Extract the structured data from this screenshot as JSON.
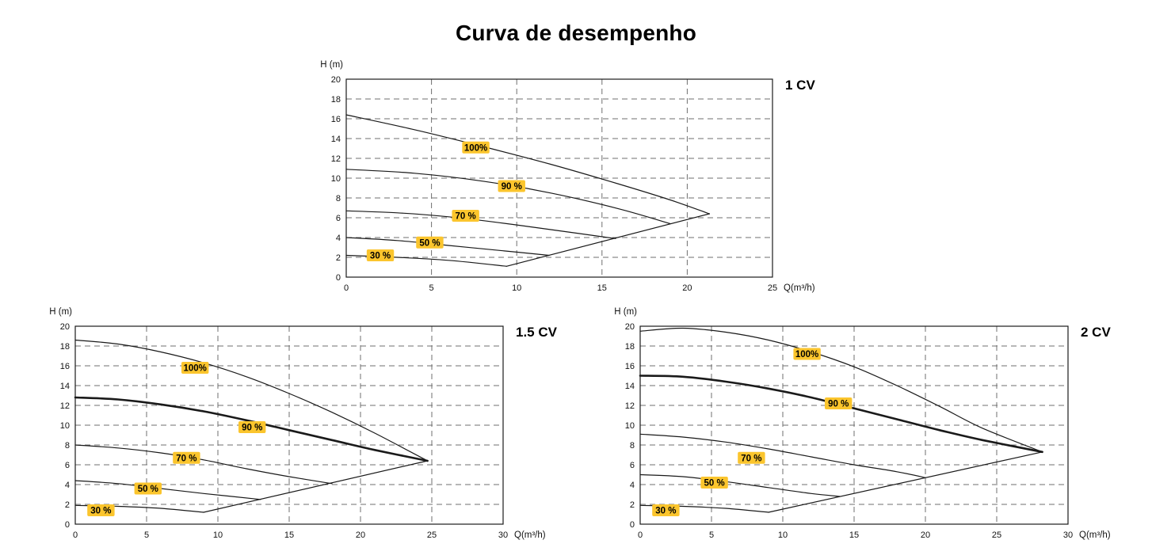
{
  "page": {
    "title": "Curva de desempenho"
  },
  "colors": {
    "curve": "#1a1a1a",
    "grid": "#6f6f6f",
    "frame": "#1a1a1a",
    "tick_text": "#111111",
    "label_bg": "#fbc52d",
    "label_text": "#000000"
  },
  "chart_data": [
    {
      "type": "line",
      "title": "1 CV",
      "xlabel": "Q(m³/h)",
      "ylabel": "H (m)",
      "xlim": [
        0,
        25
      ],
      "ylim": [
        0,
        20
      ],
      "xticks": [
        0,
        5,
        10,
        15,
        20,
        25
      ],
      "yticks": [
        0,
        2,
        4,
        6,
        8,
        10,
        12,
        14,
        16,
        18,
        20
      ],
      "grid": true,
      "legend_position": "none",
      "series": [
        {
          "name": "100%",
          "bold": false,
          "points": [
            [
              0,
              16.4
            ],
            [
              4,
              14.9
            ],
            [
              8,
              13.2
            ],
            [
              12,
              11.4
            ],
            [
              16,
              9.4
            ],
            [
              19,
              7.8
            ],
            [
              21.3,
              6.4
            ]
          ]
        },
        {
          "name": "90%",
          "bold": false,
          "points": [
            [
              0,
              10.9
            ],
            [
              4,
              10.5
            ],
            [
              8,
              9.7
            ],
            [
              12,
              8.5
            ],
            [
              16,
              6.9
            ],
            [
              19,
              5.4
            ]
          ]
        },
        {
          "name": "70%",
          "bold": false,
          "points": [
            [
              0,
              6.7
            ],
            [
              3,
              6.5
            ],
            [
              6,
              6.1
            ],
            [
              9,
              5.5
            ],
            [
              12,
              4.8
            ],
            [
              15.8,
              3.9
            ]
          ]
        },
        {
          "name": "50%",
          "bold": false,
          "points": [
            [
              0,
              4.0
            ],
            [
              3,
              3.7
            ],
            [
              6,
              3.2
            ],
            [
              9,
              2.7
            ],
            [
              11.9,
              2.2
            ]
          ]
        },
        {
          "name": "30%",
          "bold": false,
          "points": [
            [
              0,
              2.2
            ],
            [
              3,
              2.0
            ],
            [
              6,
              1.7
            ],
            [
              9.4,
              1.1
            ]
          ]
        },
        {
          "name": "limit-envelope",
          "bold": false,
          "points": [
            [
              9.4,
              1.1
            ],
            [
              21.3,
              6.4
            ]
          ]
        }
      ],
      "labels": [
        {
          "text": "100%",
          "x": 7.6,
          "y": 13.1
        },
        {
          "text": "90 %",
          "x": 9.7,
          "y": 9.2
        },
        {
          "text": "70 %",
          "x": 7.0,
          "y": 6.2
        },
        {
          "text": "50 %",
          "x": 4.9,
          "y": 3.5
        },
        {
          "text": "30 %",
          "x": 2.0,
          "y": 2.2
        }
      ]
    },
    {
      "type": "line",
      "title": "1.5 CV",
      "xlabel": "Q(m³/h)",
      "ylabel": "H (m)",
      "xlim": [
        0,
        30
      ],
      "ylim": [
        0,
        20
      ],
      "xticks": [
        0,
        5,
        10,
        15,
        20,
        25,
        30
      ],
      "yticks": [
        0,
        2,
        4,
        6,
        8,
        10,
        12,
        14,
        16,
        18,
        20
      ],
      "grid": true,
      "legend_position": "none",
      "series": [
        {
          "name": "100%",
          "bold": false,
          "points": [
            [
              0,
              18.6
            ],
            [
              3,
              18.2
            ],
            [
              6,
              17.4
            ],
            [
              9,
              16.3
            ],
            [
              12,
              14.9
            ],
            [
              15,
              13.2
            ],
            [
              18,
              11.3
            ],
            [
              21,
              9.2
            ],
            [
              24.7,
              6.4
            ]
          ]
        },
        {
          "name": "90%",
          "bold": true,
          "points": [
            [
              0,
              12.8
            ],
            [
              3,
              12.6
            ],
            [
              6,
              12.1
            ],
            [
              9,
              11.4
            ],
            [
              12,
              10.5
            ],
            [
              15,
              9.5
            ],
            [
              18,
              8.5
            ],
            [
              21,
              7.5
            ],
            [
              24.7,
              6.4
            ]
          ]
        },
        {
          "name": "70%",
          "bold": false,
          "points": [
            [
              0,
              8.0
            ],
            [
              3,
              7.7
            ],
            [
              6,
              7.2
            ],
            [
              9,
              6.5
            ],
            [
              12,
              5.6
            ],
            [
              15,
              4.8
            ],
            [
              18,
              4.1
            ]
          ]
        },
        {
          "name": "50%",
          "bold": false,
          "points": [
            [
              0,
              4.4
            ],
            [
              3,
              4.1
            ],
            [
              6,
              3.6
            ],
            [
              9,
              3.1
            ],
            [
              13,
              2.5
            ]
          ]
        },
        {
          "name": "30%",
          "bold": false,
          "points": [
            [
              0,
              1.9
            ],
            [
              3,
              1.8
            ],
            [
              6,
              1.6
            ],
            [
              9,
              1.2
            ]
          ]
        },
        {
          "name": "limit-envelope",
          "bold": false,
          "points": [
            [
              9,
              1.2
            ],
            [
              24.7,
              6.4
            ]
          ]
        }
      ],
      "labels": [
        {
          "text": "100%",
          "x": 8.4,
          "y": 15.8
        },
        {
          "text": "90 %",
          "x": 12.4,
          "y": 9.8
        },
        {
          "text": "70 %",
          "x": 7.8,
          "y": 6.7
        },
        {
          "text": "50 %",
          "x": 5.1,
          "y": 3.6
        },
        {
          "text": "30 %",
          "x": 1.8,
          "y": 1.4
        }
      ]
    },
    {
      "type": "line",
      "title": "2 CV",
      "xlabel": "Q(m³/h)",
      "ylabel": "H (m)",
      "xlim": [
        0,
        30
      ],
      "ylim": [
        0,
        20
      ],
      "xticks": [
        0,
        5,
        10,
        15,
        20,
        25,
        30
      ],
      "yticks": [
        0,
        2,
        4,
        6,
        8,
        10,
        12,
        14,
        16,
        18,
        20
      ],
      "grid": true,
      "legend_position": "none",
      "series": [
        {
          "name": "100%",
          "bold": false,
          "points": [
            [
              0,
              19.5
            ],
            [
              3,
              19.8
            ],
            [
              6,
              19.4
            ],
            [
              9,
              18.6
            ],
            [
              12,
              17.4
            ],
            [
              15,
              15.9
            ],
            [
              18,
              14.0
            ],
            [
              21,
              11.9
            ],
            [
              24,
              9.7
            ],
            [
              28.2,
              7.3
            ]
          ]
        },
        {
          "name": "90%",
          "bold": true,
          "points": [
            [
              0,
              15.0
            ],
            [
              3,
              14.9
            ],
            [
              6,
              14.4
            ],
            [
              9,
              13.7
            ],
            [
              12,
              12.8
            ],
            [
              15,
              11.7
            ],
            [
              18,
              10.6
            ],
            [
              21,
              9.5
            ],
            [
              24,
              8.5
            ],
            [
              28.2,
              7.3
            ]
          ]
        },
        {
          "name": "70%",
          "bold": false,
          "points": [
            [
              0,
              9.1
            ],
            [
              3,
              8.8
            ],
            [
              6,
              8.3
            ],
            [
              9,
              7.6
            ],
            [
              12,
              6.8
            ],
            [
              15,
              6.0
            ],
            [
              18,
              5.3
            ],
            [
              20,
              4.7
            ]
          ]
        },
        {
          "name": "50%",
          "bold": false,
          "points": [
            [
              0,
              5.0
            ],
            [
              3,
              4.8
            ],
            [
              6,
              4.3
            ],
            [
              9,
              3.7
            ],
            [
              12,
              3.1
            ],
            [
              14,
              2.8
            ]
          ]
        },
        {
          "name": "30%",
          "bold": false,
          "points": [
            [
              0,
              1.9
            ],
            [
              3,
              1.8
            ],
            [
              6,
              1.6
            ],
            [
              9,
              1.2
            ]
          ]
        },
        {
          "name": "limit-envelope",
          "bold": false,
          "points": [
            [
              9,
              1.2
            ],
            [
              28.2,
              7.3
            ]
          ]
        }
      ],
      "labels": [
        {
          "text": "100%",
          "x": 11.7,
          "y": 17.2
        },
        {
          "text": "90 %",
          "x": 13.9,
          "y": 12.2
        },
        {
          "text": "70 %",
          "x": 7.8,
          "y": 6.7
        },
        {
          "text": "50 %",
          "x": 5.2,
          "y": 4.2
        },
        {
          "text": "30 %",
          "x": 1.8,
          "y": 1.4
        }
      ]
    }
  ]
}
